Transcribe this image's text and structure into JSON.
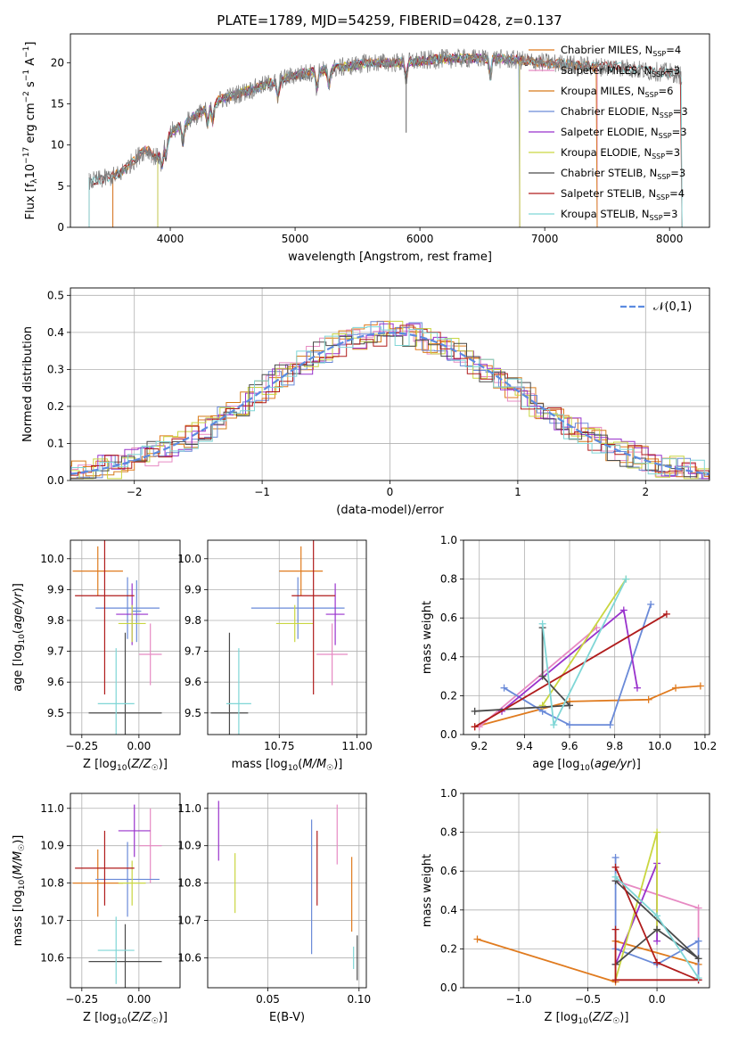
{
  "title": "PLATE=1789, MJD=54259, FIBERID=0428, z=0.137",
  "colors": [
    "#e07b1f",
    "#e78ac3",
    "#d67b1a",
    "#6a8ad8",
    "#9932cc",
    "#c9d640",
    "#4a4a4a",
    "#b01c1c",
    "#7fd6d6"
  ],
  "chart_data": [
    {
      "id": "spectrum",
      "type": "line",
      "xlabel": "wavelength [Angstrom, rest frame]",
      "ylabel": "Flux [f_λ10^-17 erg cm^-2 s^-1 A^-1]",
      "xlim": [
        3200,
        8320
      ],
      "ylim": [
        0,
        23.5
      ],
      "xticks": [
        4000,
        5000,
        6000,
        7000,
        8000
      ],
      "yticks": [
        0,
        5,
        10,
        15,
        20
      ],
      "grid": false,
      "legend_position": "upper-right",
      "legend": [
        "Chabrier MILES, N_SSP=4",
        "Salpeter MILES, N_SSP=3",
        "Kroupa MILES, N_SSP=6",
        "Chabrier ELODIE, N_SSP=3",
        "Salpeter ELODIE, N_SSP=3",
        "Kroupa ELODIE, N_SSP=3",
        "Chabrier STELIB, N_SSP=3",
        "Salpeter STELIB, N_SSP=4",
        "Kroupa STELIB, N_SSP=3"
      ],
      "legend_colors": [
        "#e07b1f",
        "#e78ac3",
        "#d67b1a",
        "#6a8ad8",
        "#9932cc",
        "#c9d640",
        "#4a4a4a",
        "#b01c1c",
        "#7fd6d6"
      ],
      "data_continuum": {
        "x": [
          3350,
          3500,
          3600,
          3700,
          3800,
          3900,
          4000,
          4100,
          4200,
          4300,
          4400,
          4500,
          4600,
          4800,
          5000,
          5200,
          5400,
          5600,
          5800,
          6000,
          6200,
          6400,
          6600,
          6800,
          7000,
          7200,
          7400,
          7600,
          7800,
          8000,
          8100
        ],
        "y": [
          5.5,
          6.0,
          6.5,
          8.0,
          9.5,
          10.0,
          11.5,
          12.5,
          13.5,
          14.5,
          15.5,
          16.0,
          16.5,
          17.5,
          18.5,
          19.0,
          19.5,
          20.0,
          20.0,
          20.2,
          20.5,
          20.5,
          20.5,
          20.3,
          20.0,
          19.8,
          19.5,
          19.5,
          19.0,
          18.8,
          18.5
        ]
      },
      "model_ranges": [
        {
          "name": "Chabrier MILES",
          "x0": 3540,
          "x1": 7420
        },
        {
          "name": "Salpeter MILES",
          "x0": 3540,
          "x1": 7420
        },
        {
          "name": "Kroupa MILES",
          "x0": 3540,
          "x1": 7420
        },
        {
          "name": "Chabrier ELODIE",
          "x0": 3900,
          "x1": 6800
        },
        {
          "name": "Salpeter ELODIE",
          "x0": 3900,
          "x1": 6800
        },
        {
          "name": "Kroupa ELODIE",
          "x0": 3900,
          "x1": 6800
        },
        {
          "name": "Chabrier STELIB",
          "x0": 3350,
          "x1": 8100
        },
        {
          "name": "Salpeter STELIB",
          "x0": 3350,
          "x1": 8100
        },
        {
          "name": "Kroupa STELIB",
          "x0": 3350,
          "x1": 8100
        }
      ]
    },
    {
      "id": "residuals",
      "type": "line",
      "xlabel": "(data-model)/error",
      "ylabel": "Normed distribution",
      "xlim": [
        -2.5,
        2.5
      ],
      "ylim": [
        0,
        0.52
      ],
      "xticks": [
        -2,
        -1,
        0,
        1,
        2
      ],
      "yticks": [
        0.0,
        0.1,
        0.2,
        0.3,
        0.4,
        0.5
      ],
      "grid": true,
      "legend": [
        "𝒩(0,1)"
      ],
      "legend_position": "upper-right"
    },
    {
      "id": "age_vs_Z",
      "type": "scatter",
      "xlabel": "Z [log10(Z/Z☉)]",
      "ylabel": "age [log10(age/yr)]",
      "xlim": [
        -0.3,
        0.18
      ],
      "ylim": [
        9.43,
        10.06
      ],
      "xticks": [
        -0.25,
        0.0
      ],
      "yticks": [
        9.5,
        9.6,
        9.7,
        9.8,
        9.9,
        10.0
      ],
      "grid": true,
      "points": [
        {
          "x": -0.18,
          "y": 9.96,
          "xerr": 0.11,
          "yerr": 0.08,
          "c": 0
        },
        {
          "x": 0.05,
          "y": 9.69,
          "xerr": 0.05,
          "yerr": 0.1,
          "c": 1
        },
        {
          "x": -0.05,
          "y": 9.84,
          "xerr": 0.14,
          "yerr": 0.1,
          "c": 3
        },
        {
          "x": -0.01,
          "y": 9.83,
          "xerr": 0.02,
          "yerr": 0.1,
          "c": 3
        },
        {
          "x": -0.03,
          "y": 9.82,
          "xerr": 0.07,
          "yerr": 0.1,
          "c": 4
        },
        {
          "x": -0.03,
          "y": 9.79,
          "xerr": 0.06,
          "yerr": 0.06,
          "c": 5
        },
        {
          "x": -0.06,
          "y": 9.5,
          "xerr": 0.16,
          "yerr": 0.26,
          "c": 6
        },
        {
          "x": -0.15,
          "y": 9.88,
          "xerr": 0.13,
          "yerr": 0.32,
          "c": 7
        },
        {
          "x": -0.1,
          "y": 9.53,
          "xerr": 0.08,
          "yerr": 0.18,
          "c": 8
        }
      ]
    },
    {
      "id": "age_vs_mass",
      "type": "scatter",
      "xlabel": "mass [log10(M/M☉)]",
      "ylabel": "",
      "xlim": [
        10.52,
        11.03
      ],
      "ylim": [
        9.43,
        10.06
      ],
      "xticks": [
        10.75,
        11.0
      ],
      "yticks": [
        9.5,
        9.6,
        9.7,
        9.8,
        9.9,
        10.0
      ],
      "grid": true,
      "points": [
        {
          "x": 10.82,
          "y": 9.96,
          "xerr": 0.07,
          "yerr": 0.08,
          "c": 0
        },
        {
          "x": 10.92,
          "y": 9.69,
          "xerr": 0.05,
          "yerr": 0.1,
          "c": 1
        },
        {
          "x": 10.81,
          "y": 9.84,
          "xerr": 0.15,
          "yerr": 0.1,
          "c": 3
        },
        {
          "x": 10.93,
          "y": 9.82,
          "xerr": 0.03,
          "yerr": 0.1,
          "c": 4
        },
        {
          "x": 10.8,
          "y": 9.79,
          "xerr": 0.06,
          "yerr": 0.06,
          "c": 5
        },
        {
          "x": 10.59,
          "y": 9.5,
          "xerr": 0.06,
          "yerr": 0.26,
          "c": 6
        },
        {
          "x": 10.86,
          "y": 9.88,
          "xerr": 0.07,
          "yerr": 0.32,
          "c": 7
        },
        {
          "x": 10.62,
          "y": 9.53,
          "xerr": 0.04,
          "yerr": 0.18,
          "c": 8
        }
      ]
    },
    {
      "id": "weight_vs_age",
      "type": "line",
      "xlabel": "age [log10(age/yr)]",
      "ylabel": "mass weight",
      "xlim": [
        9.13,
        10.22
      ],
      "ylim": [
        0,
        1
      ],
      "xticks": [
        9.2,
        9.4,
        9.6,
        9.8,
        10.0,
        10.2
      ],
      "yticks": [
        0.0,
        0.2,
        0.4,
        0.6,
        0.8,
        1.0
      ],
      "grid": true,
      "series": [
        {
          "c": 0,
          "x": [
            9.18,
            9.6,
            9.95,
            10.07,
            10.18
          ],
          "y": [
            0.04,
            0.17,
            0.18,
            0.24,
            0.25
          ]
        },
        {
          "c": 1,
          "x": [
            9.2,
            9.72
          ],
          "y": [
            0.04,
            0.55
          ]
        },
        {
          "c": 3,
          "x": [
            9.31,
            9.48,
            9.6,
            9.78,
            9.96
          ],
          "y": [
            0.24,
            0.12,
            0.05,
            0.05,
            0.67
          ]
        },
        {
          "c": 4,
          "x": [
            9.3,
            9.84,
            9.9
          ],
          "y": [
            0.12,
            0.64,
            0.24
          ]
        },
        {
          "c": 5,
          "x": [
            9.48,
            9.85
          ],
          "y": [
            0.15,
            0.8
          ]
        },
        {
          "c": 6,
          "x": [
            9.18,
            9.6,
            9.48,
            9.48
          ],
          "y": [
            0.12,
            0.15,
            0.3,
            0.55
          ]
        },
        {
          "c": 7,
          "x": [
            9.18,
            10.03
          ],
          "y": [
            0.04,
            0.62
          ]
        },
        {
          "c": 8,
          "x": [
            9.48,
            9.53,
            9.85
          ],
          "y": [
            0.57,
            0.05,
            0.8
          ]
        }
      ]
    },
    {
      "id": "mass_vs_Z",
      "type": "scatter",
      "xlabel": "Z [log10(Z/Z☉)]",
      "ylabel": "mass [log10(M/M☉)]",
      "xlim": [
        -0.3,
        0.18
      ],
      "ylim": [
        10.52,
        11.04
      ],
      "xticks": [
        -0.25,
        0.0
      ],
      "yticks": [
        10.6,
        10.7,
        10.8,
        10.9,
        11.0
      ],
      "grid": true,
      "points": [
        {
          "x": -0.18,
          "y": 10.8,
          "xerr": 0.11,
          "yerr": 0.09,
          "c": 0
        },
        {
          "x": 0.05,
          "y": 10.9,
          "xerr": 0.05,
          "yerr": 0.1,
          "c": 1
        },
        {
          "x": -0.05,
          "y": 10.81,
          "xerr": 0.14,
          "yerr": 0.1,
          "c": 3
        },
        {
          "x": -0.02,
          "y": 10.94,
          "xerr": 0.07,
          "yerr": 0.07,
          "c": 4
        },
        {
          "x": -0.03,
          "y": 10.8,
          "xerr": 0.06,
          "yerr": 0.06,
          "c": 5
        },
        {
          "x": -0.06,
          "y": 10.59,
          "xerr": 0.16,
          "yerr": 0.1,
          "c": 6
        },
        {
          "x": -0.15,
          "y": 10.84,
          "xerr": 0.13,
          "yerr": 0.1,
          "c": 7
        },
        {
          "x": -0.1,
          "y": 10.62,
          "xerr": 0.08,
          "yerr": 0.09,
          "c": 8
        }
      ]
    },
    {
      "id": "mass_vs_ebv",
      "type": "scatter",
      "xlabel": "E(B-V)",
      "ylabel": "",
      "xlim": [
        0.017,
        0.104
      ],
      "ylim": [
        10.52,
        11.04
      ],
      "xticks": [
        0.05,
        0.1
      ],
      "yticks": [
        10.6,
        10.7,
        10.8,
        10.9,
        11.0
      ],
      "grid": true,
      "points": [
        {
          "x": 0.096,
          "y": 10.77,
          "yerr": 0.1,
          "c": 0
        },
        {
          "x": 0.088,
          "y": 10.93,
          "yerr": 0.08,
          "c": 1
        },
        {
          "x": 0.074,
          "y": 10.79,
          "yerr": 0.18,
          "c": 3
        },
        {
          "x": 0.023,
          "y": 10.94,
          "yerr": 0.08,
          "c": 4
        },
        {
          "x": 0.032,
          "y": 10.8,
          "yerr": 0.08,
          "c": 5
        },
        {
          "x": 0.099,
          "y": 10.6,
          "yerr": 0.06,
          "c": 6
        },
        {
          "x": 0.077,
          "y": 10.84,
          "yerr": 0.1,
          "c": 7
        },
        {
          "x": 0.097,
          "y": 10.6,
          "yerr": 0.03,
          "c": 8
        }
      ]
    },
    {
      "id": "weight_vs_Z",
      "type": "line",
      "xlabel": "Z [log10(Z/Z☉)]",
      "ylabel": "mass weight",
      "xlim": [
        -1.4,
        0.38
      ],
      "ylim": [
        0,
        1
      ],
      "xticks": [
        -1.0,
        -0.5,
        0.0
      ],
      "yticks": [
        0.0,
        0.2,
        0.4,
        0.6,
        0.8,
        1.0
      ],
      "grid": true,
      "series": [
        {
          "c": 0,
          "x": [
            -1.3,
            -0.3,
            -0.3,
            0.3
          ],
          "y": [
            0.25,
            0.03,
            0.24,
            0.12
          ]
        },
        {
          "c": 1,
          "x": [
            -0.3,
            0.3,
            0.3
          ],
          "y": [
            0.55,
            0.41,
            0.04
          ]
        },
        {
          "c": 3,
          "x": [
            -0.3,
            -0.3,
            0.0,
            0.3,
            0.3
          ],
          "y": [
            0.67,
            0.2,
            0.12,
            0.24,
            0.04
          ]
        },
        {
          "c": 4,
          "x": [
            -0.3,
            0.0,
            0.0
          ],
          "y": [
            0.12,
            0.64,
            0.24
          ]
        },
        {
          "c": 5,
          "x": [
            -0.3,
            0.0,
            0.0
          ],
          "y": [
            0.04,
            0.8,
            0.3
          ]
        },
        {
          "c": 6,
          "x": [
            -0.3,
            0.3,
            0.0,
            -0.3
          ],
          "y": [
            0.55,
            0.15,
            0.3,
            0.12
          ]
        },
        {
          "c": 7,
          "x": [
            -0.3,
            0.0,
            0.3,
            -0.3,
            -0.3
          ],
          "y": [
            0.62,
            0.13,
            0.04,
            0.04,
            0.3
          ]
        },
        {
          "c": 8,
          "x": [
            -0.3,
            0.0,
            0.3
          ],
          "y": [
            0.57,
            0.37,
            0.05
          ]
        }
      ]
    }
  ]
}
